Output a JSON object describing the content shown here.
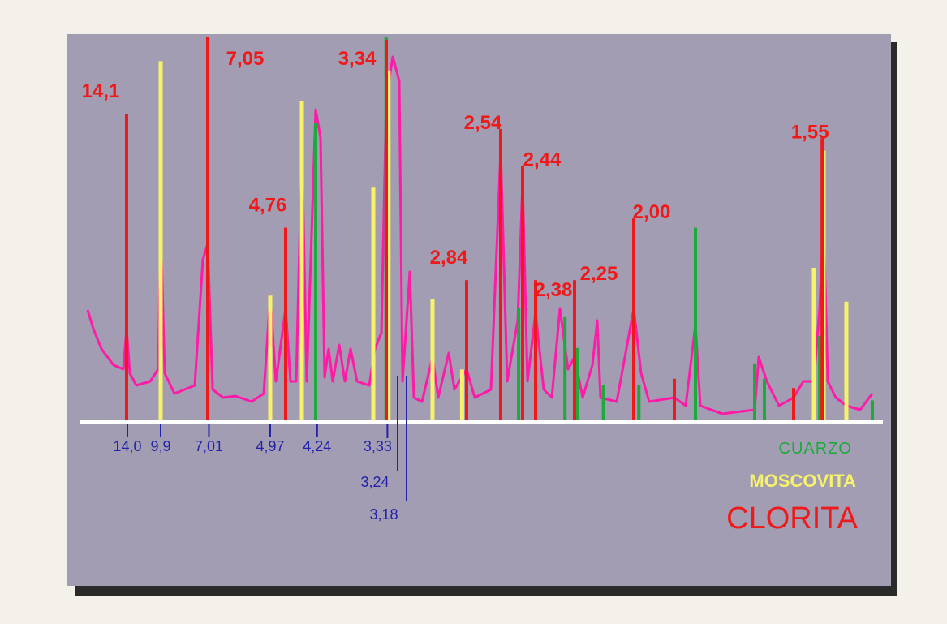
{
  "colors": {
    "page": "#f4f1ea",
    "panel": "#a29db3",
    "shadow": "#2a2a2a",
    "baseline": "#ffffff",
    "trace": "#ff1aa8",
    "cuarzo": "#1cab3a",
    "moscovita": "#f6f36a",
    "clorita": "#f01818",
    "measured": "#2222aa"
  },
  "legend": {
    "cuarzo": "CUARZO",
    "moscovita": "MOSCOVITA",
    "clorita": "CLORITA"
  },
  "chart_data": {
    "type": "line",
    "xlabel": "",
    "ylabel": "",
    "grid": false,
    "legend_position": "bottom-right",
    "series": [
      {
        "name": "CLORITA",
        "color": "#f01818",
        "peaks": [
          {
            "d": 14.1,
            "intensity": 100,
            "label": "14,1"
          },
          {
            "d": 7.05,
            "intensity": 125,
            "label": "7,05"
          },
          {
            "d": 4.76,
            "intensity": 63,
            "label": "4,76"
          },
          {
            "d": 3.34,
            "intensity": 124,
            "label": "3,34"
          },
          {
            "d": 2.84,
            "intensity": 46,
            "label": "2,84"
          },
          {
            "d": 2.54,
            "intensity": 95,
            "label": "2,54"
          },
          {
            "d": 2.44,
            "intensity": 83,
            "label": "2,44"
          },
          {
            "d": 2.38,
            "intensity": 46,
            "label": "2,38"
          },
          {
            "d": 2.25,
            "intensity": 46,
            "label": "2,25"
          },
          {
            "d": 2.0,
            "intensity": 66,
            "label": "2,00"
          },
          {
            "d": 1.84,
            "intensity": 14,
            "label": ""
          },
          {
            "d": 1.62,
            "intensity": 11,
            "label": ""
          },
          {
            "d": 1.55,
            "intensity": 92,
            "label": "1,55"
          }
        ]
      },
      {
        "name": "MOSCOVITA",
        "color": "#f6f36a",
        "peaks": [
          {
            "d": 9.9,
            "intensity": 117
          },
          {
            "d": 4.97,
            "intensity": 41
          },
          {
            "d": 4.45,
            "intensity": 104
          },
          {
            "d": 3.48,
            "intensity": 76
          },
          {
            "d": 3.32,
            "intensity": 114
          },
          {
            "d": 2.99,
            "intensity": 40
          },
          {
            "d": 2.86,
            "intensity": 17
          },
          {
            "d": 1.51,
            "intensity": 50
          },
          {
            "d": 1.555,
            "intensity": 88
          },
          {
            "d": 1.497,
            "intensity": 39
          }
        ]
      },
      {
        "name": "CUARZO",
        "color": "#1cab3a",
        "peaks": [
          {
            "d": 4.26,
            "intensity": 97
          },
          {
            "d": 3.343,
            "intensity": 125
          },
          {
            "d": 2.458,
            "intensity": 37
          },
          {
            "d": 2.282,
            "intensity": 34
          },
          {
            "d": 2.237,
            "intensity": 24
          },
          {
            "d": 2.128,
            "intensity": 12
          },
          {
            "d": 1.98,
            "intensity": 12
          },
          {
            "d": 1.817,
            "intensity": 63
          },
          {
            "d": 1.672,
            "intensity": 19
          },
          {
            "d": 1.659,
            "intensity": 14
          },
          {
            "d": 1.541,
            "intensity": 28
          },
          {
            "d": 1.375,
            "intensity": 7
          }
        ]
      }
    ],
    "measured_peaks": [
      "14,0",
      "9,9",
      "7,01",
      "4,97",
      "4,24",
      "3,33",
      "3,24",
      "3,18"
    ],
    "measured_positions": [
      14.0,
      9.9,
      7.01,
      4.97,
      4.24,
      3.33,
      3.24,
      3.18
    ]
  }
}
